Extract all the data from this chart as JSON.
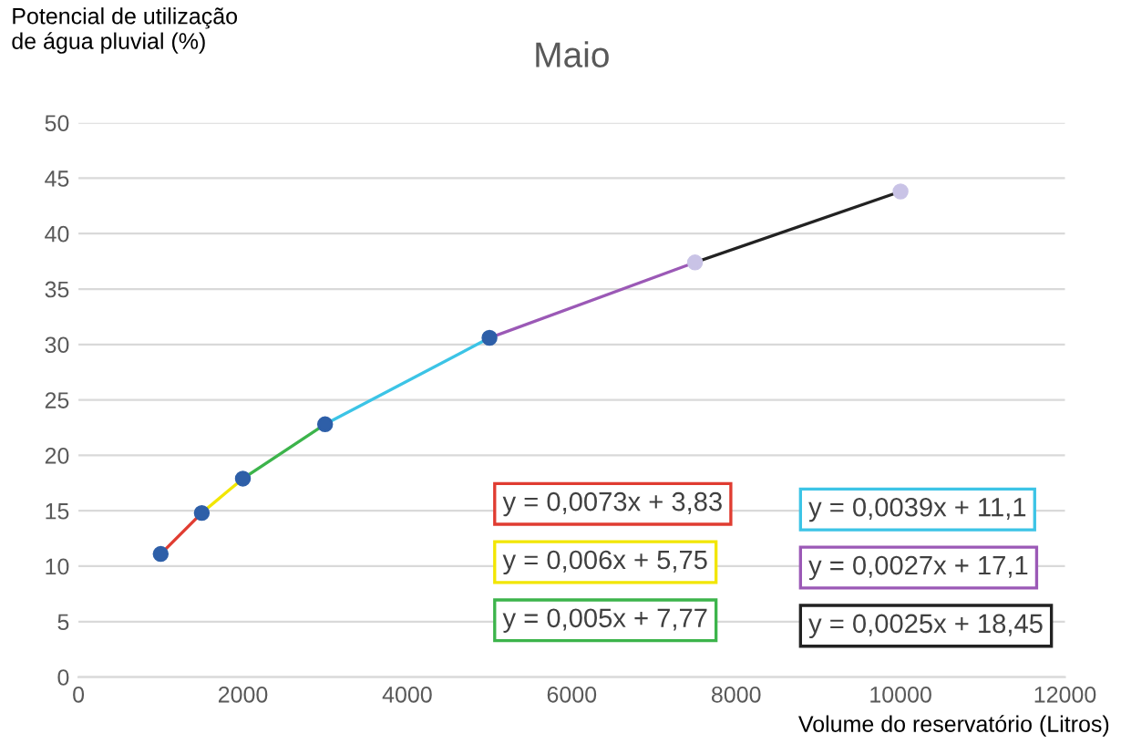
{
  "chart_data": {
    "type": "line",
    "title": "Maio",
    "xlabel": "Volume do reservatório (Litros)",
    "ylabel": "Potencial de utilização\nde água pluvial (%)",
    "series": [
      {
        "color": "#e03c31",
        "x": [
          1000,
          1500
        ],
        "values": [
          11.1,
          14.8
        ]
      },
      {
        "color": "#f2e600",
        "x": [
          1500,
          2000
        ],
        "values": [
          14.8,
          17.9
        ]
      },
      {
        "color": "#3cb44b",
        "x": [
          2000,
          3000
        ],
        "values": [
          17.9,
          22.8
        ]
      },
      {
        "color": "#3cc4e6",
        "x": [
          3000,
          5000
        ],
        "values": [
          22.8,
          30.6
        ]
      },
      {
        "color": "#9b59b6",
        "x": [
          5000,
          7500
        ],
        "values": [
          30.6,
          37.4
        ]
      },
      {
        "color": "#222222",
        "x": [
          7500,
          10000
        ],
        "values": [
          37.4,
          43.8
        ]
      },
      {
        "type": "scatter",
        "marker": "circle",
        "x": [
          1000,
          1500,
          2000,
          3000,
          5000,
          7500,
          10000
        ],
        "values": [
          11.1,
          14.8,
          17.9,
          22.8,
          30.6,
          37.4,
          43.8
        ],
        "colors": [
          "#2e5fa8",
          "#2e5fa8",
          "#2e5fa8",
          "#2e5fa8",
          "#2e5fa8",
          "#c9c3e6",
          "#c9c3e6"
        ]
      }
    ],
    "annotations": [
      "y = 0,0073x + 3,83",
      "y = 0,006x + 5,75",
      "y = 0,005x + 7,77",
      "y = 0,0039x + 11,1",
      "y = 0,0027x + 17,1",
      "y = 0,0025x + 18,45"
    ],
    "xlim": [
      0,
      12000
    ],
    "xticks": [
      0,
      2000,
      4000,
      6000,
      8000,
      10000,
      12000
    ],
    "ylim": [
      0,
      50
    ],
    "yticks": [
      0,
      5,
      10,
      15,
      20,
      25,
      30,
      35,
      40,
      45,
      50
    ],
    "grid": "y",
    "legend": false,
    "marker": "none",
    "line_style": "solid"
  }
}
